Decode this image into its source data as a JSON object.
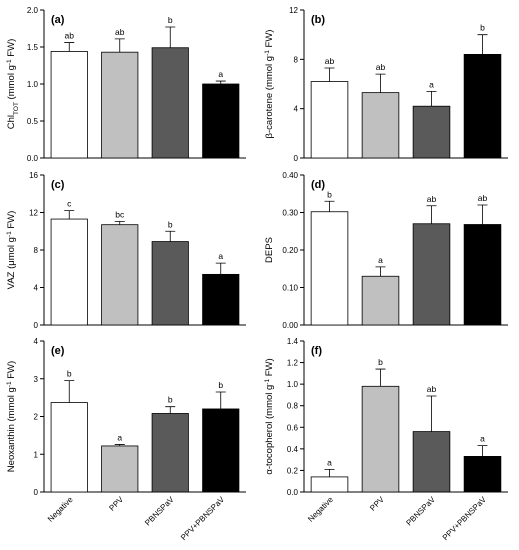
{
  "colors": {
    "Negative": "#ffffff",
    "PPV": "#c0c0c0",
    "PBNSPaV": "#5a5a5a",
    "PPV+PBNSPaV": "#000000"
  },
  "chart_data": [
    {
      "type": "bar",
      "panel": "(a)",
      "ylabel_main": "Chl",
      "ylabel_sub": "TOT",
      "ylabel_rest": " (mmol g",
      "ylabel_sup": "-1",
      "ylabel_end": " FW)",
      "categories": [
        "Negative",
        "PPV",
        "PBNSPaV",
        "PPV+PBNSPaV"
      ],
      "values": [
        1.44,
        1.43,
        1.49,
        1.0
      ],
      "errors": [
        0.12,
        0.18,
        0.28,
        0.04
      ],
      "letters": [
        "ab",
        "ab",
        "b",
        "a"
      ],
      "ylim": [
        0,
        2.0
      ],
      "yticks": [
        "0.0",
        "0.5",
        "1.0",
        "1.5",
        "2.0"
      ],
      "ytick_values": [
        0,
        0.5,
        1.0,
        1.5,
        2.0
      ],
      "show_categories": false
    },
    {
      "type": "bar",
      "panel": "(b)",
      "ylabel_main": "β-carotene (mmol g",
      "ylabel_sup": "-1",
      "ylabel_end": " FW)",
      "categories": [
        "Negative",
        "PPV",
        "PBNSPaV",
        "PPV+PBNSPaV"
      ],
      "values": [
        6.2,
        5.3,
        4.2,
        8.4
      ],
      "errors": [
        1.1,
        1.5,
        1.2,
        1.6
      ],
      "letters": [
        "ab",
        "ab",
        "a",
        "b"
      ],
      "ylim": [
        0,
        12
      ],
      "yticks": [
        "0",
        "4",
        "8",
        "12"
      ],
      "ytick_values": [
        0,
        4,
        8,
        12
      ],
      "show_categories": false
    },
    {
      "type": "bar",
      "panel": "(c)",
      "ylabel_main": "VAZ (μmol g",
      "ylabel_sup": "-1",
      "ylabel_end": " FW)",
      "categories": [
        "Negative",
        "PPV",
        "PBNSPaV",
        "PPV+PBNSPaV"
      ],
      "values": [
        11.3,
        10.7,
        8.9,
        5.4
      ],
      "errors": [
        0.9,
        0.35,
        1.1,
        1.2
      ],
      "letters": [
        "c",
        "bc",
        "b",
        "a"
      ],
      "ylim": [
        0,
        16
      ],
      "yticks": [
        "0",
        "4",
        "8",
        "12",
        "16"
      ],
      "ytick_values": [
        0,
        4,
        8,
        12,
        16
      ],
      "show_categories": false
    },
    {
      "type": "bar",
      "panel": "(d)",
      "ylabel_main": "DEPS",
      "categories": [
        "Negative",
        "PPV",
        "PBNSPaV",
        "PPV+PBNSPaV"
      ],
      "values": [
        0.302,
        0.13,
        0.27,
        0.268
      ],
      "errors": [
        0.028,
        0.025,
        0.048,
        0.052
      ],
      "letters": [
        "b",
        "a",
        "ab",
        "ab"
      ],
      "ylim": [
        0,
        0.4
      ],
      "yticks": [
        "0.00",
        "0.10",
        "0.20",
        "0.30",
        "0.40"
      ],
      "ytick_values": [
        0,
        0.1,
        0.2,
        0.3,
        0.4
      ],
      "show_categories": false
    },
    {
      "type": "bar",
      "panel": "(e)",
      "ylabel_main": "Neoxanthin (mmol g",
      "ylabel_sup": "-1",
      "ylabel_end": " FW)",
      "categories": [
        "Negative",
        "PPV",
        "PBNSPaV",
        "PPV+PBNSPaV"
      ],
      "values": [
        2.37,
        1.22,
        2.08,
        2.2
      ],
      "errors": [
        0.58,
        0.04,
        0.18,
        0.45
      ],
      "letters": [
        "b",
        "a",
        "b",
        "b"
      ],
      "ylim": [
        0,
        4
      ],
      "yticks": [
        "0",
        "1",
        "2",
        "3",
        "4"
      ],
      "ytick_values": [
        0,
        1,
        2,
        3,
        4
      ],
      "show_categories": true
    },
    {
      "type": "bar",
      "panel": "(f)",
      "ylabel_main": "α-tocopherol (mmol g",
      "ylabel_sup": "-1",
      "ylabel_end": " FW)",
      "categories": [
        "Negative",
        "PPV",
        "PBNSPaV",
        "PPV+PBNSPaV"
      ],
      "values": [
        0.14,
        0.98,
        0.56,
        0.33
      ],
      "errors": [
        0.07,
        0.16,
        0.33,
        0.1
      ],
      "letters": [
        "a",
        "b",
        "ab",
        "a"
      ],
      "ylim": [
        0,
        1.4
      ],
      "yticks": [
        "0.0",
        "0.2",
        "0.4",
        "0.6",
        "0.8",
        "1.0",
        "1.2",
        "1.4"
      ],
      "ytick_values": [
        0,
        0.2,
        0.4,
        0.6,
        0.8,
        1.0,
        1.2,
        1.4
      ],
      "show_categories": true
    }
  ]
}
